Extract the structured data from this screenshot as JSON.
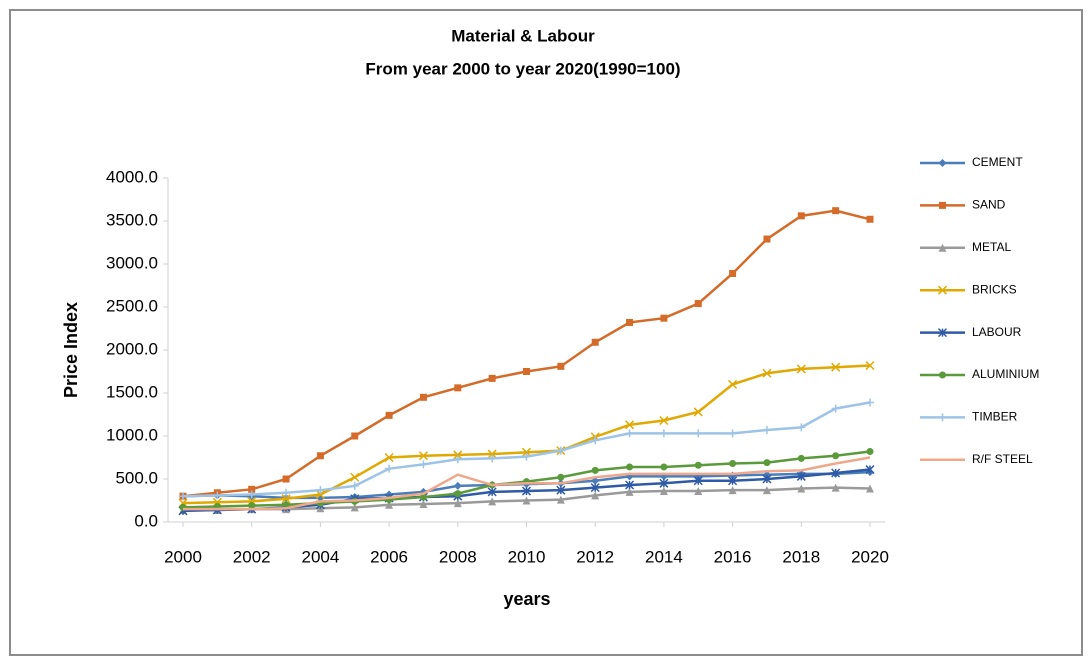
{
  "chart_data": {
    "type": "line",
    "title": "Material & Labour",
    "subtitle": "From year 2000 to year 2020(1990=100)",
    "x_label": "years",
    "y_label": "Price Index",
    "x": [
      2000,
      2001,
      2002,
      2003,
      2004,
      2005,
      2006,
      2007,
      2008,
      2009,
      2010,
      2011,
      2012,
      2013,
      2014,
      2015,
      2016,
      2017,
      2018,
      2019,
      2020
    ],
    "xlim": [
      2000,
      2020
    ],
    "xticks": [
      2000,
      2002,
      2004,
      2006,
      2008,
      2010,
      2012,
      2014,
      2016,
      2018,
      2020
    ],
    "ylim": [
      0,
      4000
    ],
    "yticks": [
      {
        "value": 0,
        "label": "0.0"
      },
      {
        "value": 500,
        "label": "500.0"
      },
      {
        "value": 1000,
        "label": "1000.0"
      },
      {
        "value": 1500,
        "label": "1500.0"
      },
      {
        "value": 2000,
        "label": "2000.0"
      },
      {
        "value": 2500,
        "label": "2500.0"
      },
      {
        "value": 3000,
        "label": "3000.0"
      },
      {
        "value": 3500,
        "label": "3500.0"
      },
      {
        "value": 4000,
        "label": "4000.0"
      }
    ],
    "legend": "right",
    "series": [
      {
        "name": "CEMENT",
        "color": "#4a7ebb",
        "marker": "diamond",
        "values": [
          300,
          310,
          300,
          280,
          280,
          290,
          320,
          350,
          420,
          430,
          440,
          450,
          480,
          530,
          530,
          530,
          540,
          550,
          560,
          560,
          580
        ]
      },
      {
        "name": "SAND",
        "color": "#d46b28",
        "marker": "square",
        "values": [
          300,
          340,
          380,
          500,
          770,
          1000,
          1240,
          1450,
          1560,
          1670,
          1750,
          1810,
          2090,
          2320,
          2370,
          2540,
          2890,
          3290,
          3560,
          3620,
          3520
        ]
      },
      {
        "name": "METAL",
        "color": "#9a9a9a",
        "marker": "triangle",
        "values": [
          140,
          140,
          150,
          150,
          160,
          170,
          200,
          210,
          220,
          240,
          250,
          260,
          310,
          350,
          360,
          360,
          370,
          370,
          390,
          400,
          390
        ]
      },
      {
        "name": "BRICKS",
        "color": "#e0a800",
        "marker": "x",
        "values": [
          220,
          230,
          240,
          270,
          320,
          520,
          750,
          770,
          780,
          790,
          810,
          830,
          990,
          1130,
          1180,
          1280,
          1600,
          1730,
          1780,
          1800,
          1820
        ]
      },
      {
        "name": "LABOUR",
        "color": "#2e5aa6",
        "marker": "star",
        "values": [
          130,
          140,
          150,
          170,
          200,
          270,
          280,
          290,
          300,
          350,
          360,
          370,
          400,
          430,
          450,
          480,
          480,
          500,
          530,
          570,
          610
        ]
      },
      {
        "name": "ALUMINIUM",
        "color": "#5a9a3a",
        "marker": "circle",
        "values": [
          170,
          180,
          190,
          200,
          220,
          240,
          260,
          290,
          330,
          430,
          470,
          520,
          600,
          640,
          640,
          660,
          680,
          690,
          740,
          770,
          820
        ]
      },
      {
        "name": "TIMBER",
        "color": "#9dc3e6",
        "marker": "plus",
        "values": [
          300,
          310,
          320,
          340,
          370,
          420,
          620,
          670,
          730,
          740,
          760,
          830,
          950,
          1030,
          1030,
          1030,
          1030,
          1070,
          1100,
          1320,
          1390
        ]
      },
      {
        "name": "R/F STEEL",
        "color": "#f0a88a",
        "marker": "none",
        "values": [
          150,
          150,
          150,
          160,
          240,
          250,
          280,
          330,
          550,
          430,
          450,
          450,
          520,
          560,
          560,
          560,
          560,
          590,
          600,
          680,
          750
        ]
      }
    ]
  }
}
